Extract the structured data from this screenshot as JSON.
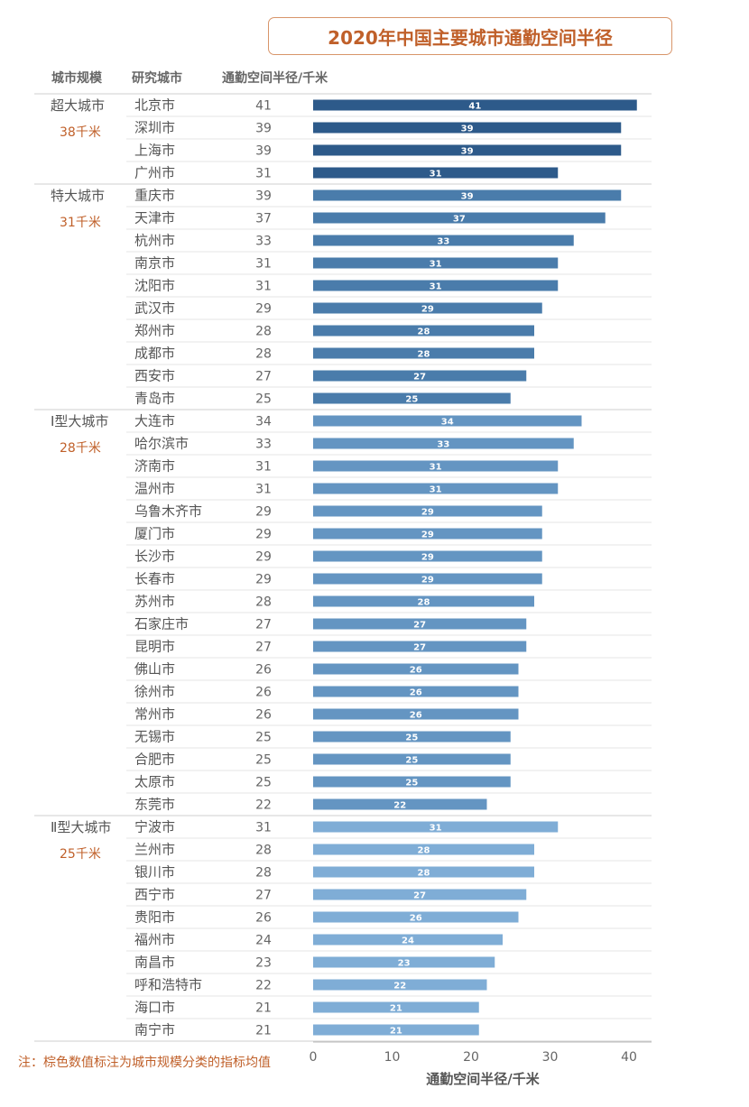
{
  "title": "2020年中国主要城市通勤空间半径",
  "headers": {
    "scale": "城市规模",
    "city": "研究城市",
    "radius": "通勤空间半径/千米"
  },
  "footnote": "注：棕色数值标注为城市规模分类的指标均值",
  "chart_data": {
    "type": "bar",
    "orientation": "horizontal",
    "xlabel": "通勤空间半径/千米",
    "xlim": [
      0,
      42
    ],
    "xticks": [
      0,
      10,
      20,
      30,
      40
    ],
    "groups": [
      {
        "name": "超大城市",
        "mean": "38千米",
        "color": "#2d5a8a",
        "cities": [
          "北京市",
          "深圳市",
          "上海市",
          "广州市"
        ],
        "values": [
          41,
          39,
          39,
          31
        ]
      },
      {
        "name": "特大城市",
        "mean": "31千米",
        "color": "#4a7cab",
        "cities": [
          "重庆市",
          "天津市",
          "杭州市",
          "南京市",
          "沈阳市",
          "武汉市",
          "郑州市",
          "成都市",
          "西安市",
          "青岛市"
        ],
        "values": [
          39,
          37,
          33,
          31,
          31,
          29,
          28,
          28,
          27,
          25
        ]
      },
      {
        "name": "Ⅰ型大城市",
        "mean": "28千米",
        "color": "#6495c2",
        "cities": [
          "大连市",
          "哈尔滨市",
          "济南市",
          "温州市",
          "乌鲁木齐市",
          "厦门市",
          "长沙市",
          "长春市",
          "苏州市",
          "石家庄市",
          "昆明市",
          "佛山市",
          "徐州市",
          "常州市",
          "无锡市",
          "合肥市",
          "太原市",
          "东莞市"
        ],
        "values": [
          34,
          33,
          31,
          31,
          29,
          29,
          29,
          29,
          28,
          27,
          27,
          26,
          26,
          26,
          25,
          25,
          25,
          22
        ]
      },
      {
        "name": "Ⅱ型大城市",
        "mean": "25千米",
        "color": "#7fadd6",
        "cities": [
          "宁波市",
          "兰州市",
          "银川市",
          "西宁市",
          "贵阳市",
          "福州市",
          "南昌市",
          "呼和浩特市",
          "海口市",
          "南宁市"
        ],
        "values": [
          31,
          28,
          28,
          27,
          26,
          24,
          23,
          22,
          21,
          21
        ]
      }
    ]
  }
}
